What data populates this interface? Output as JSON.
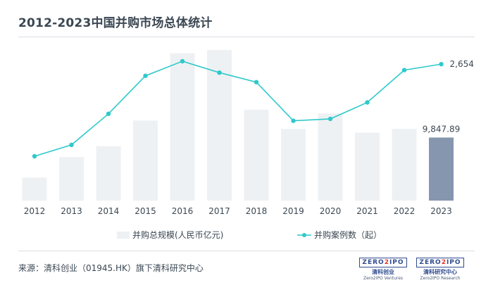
{
  "title": "2012-2023中国并购市场总体统计",
  "source": "来源：清科创业（01945.HK）旗下清科研究中心",
  "logos": [
    {
      "top": "ZERO",
      "mid": "2",
      "end": "IPO",
      "cn": "清科创业",
      "en": "Zero2IPO Ventures"
    },
    {
      "top": "ZERO",
      "mid": "2",
      "end": "IPO",
      "cn": "清科研究中心",
      "en": "Zero2IPO Research"
    }
  ],
  "colors": {
    "bar": "#eef1f3",
    "bar_highlight": "#8696af",
    "line": "#2fc9cb"
  },
  "chart_data": {
    "type": "bar+line",
    "categories": [
      "2012",
      "2013",
      "2014",
      "2015",
      "2016",
      "2017",
      "2018",
      "2019",
      "2020",
      "2021",
      "2022",
      "2023"
    ],
    "series": [
      {
        "name": "并购总规模(人民币亿元)",
        "type": "bar",
        "values": [
          3600,
          6800,
          8500,
          12500,
          23000,
          23500,
          14200,
          11200,
          13600,
          10600,
          11200,
          9847.89
        ],
        "labels": [
          "",
          "",
          "",
          "",
          "",
          "",
          "",
          "",
          "",
          "",
          "",
          "9,847.89"
        ]
      },
      {
        "name": "并购案例数（起）",
        "type": "line",
        "values": [
          1200,
          1380,
          1870,
          2470,
          2700,
          2520,
          2370,
          1760,
          1790,
          2050,
          2560,
          2654
        ],
        "labels": [
          "",
          "",
          "",
          "",
          "",
          "",
          "",
          "",
          "",
          "",
          "",
          "2,654"
        ]
      }
    ]
  }
}
